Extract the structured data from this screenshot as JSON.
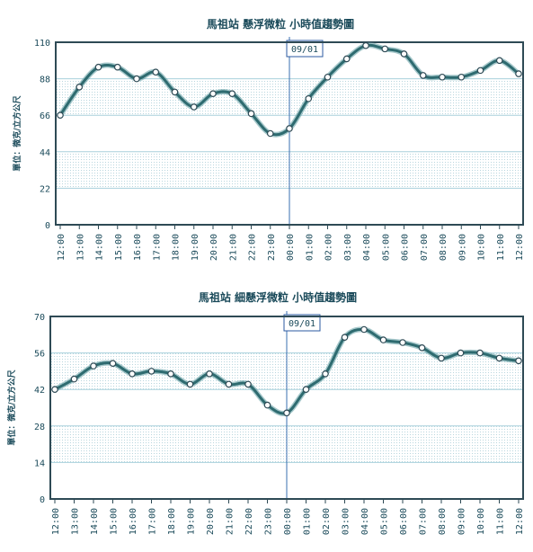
{
  "colors": {
    "frame": "#2e4a55",
    "grid": "#a8d0dc",
    "band": "#e8f1f4",
    "line": "#2e6b70",
    "line_halo": "#6aa3a8",
    "point_fill": "#ffffff",
    "point_stroke": "#2e4a55",
    "text": "#1a4a5a",
    "marker_line": "#3a6fb0",
    "marker_box": "#2b5aa0"
  },
  "chart_data": [
    {
      "type": "line",
      "title": "馬祖站 懸浮微粒 小時值趨勢圖",
      "ylabel": "單位：微克/立方公尺",
      "xlabel": "",
      "ylim": [
        0,
        110
      ],
      "yticks": [
        0,
        22,
        44,
        66,
        88,
        110
      ],
      "categories": [
        "12:00",
        "13:00",
        "14:00",
        "15:00",
        "16:00",
        "17:00",
        "18:00",
        "19:00",
        "20:00",
        "21:00",
        "22:00",
        "23:00",
        "00:00",
        "01:00",
        "02:00",
        "03:00",
        "04:00",
        "05:00",
        "06:00",
        "07:00",
        "08:00",
        "09:00",
        "10:00",
        "11:00",
        "12:00"
      ],
      "series": [
        {
          "values": [
            66,
            83,
            95,
            95,
            88,
            92,
            80,
            71,
            79,
            79,
            67,
            55,
            58,
            76,
            89,
            100,
            108,
            106,
            103,
            90,
            89,
            89,
            93,
            99,
            91
          ]
        }
      ],
      "grid": true,
      "marker": {
        "label": "09/01",
        "category": "00:00"
      }
    },
    {
      "type": "line",
      "title": "馬祖站 細懸浮微粒 小時值趨勢圖",
      "ylabel": "單位：微克/立方公尺",
      "xlabel": "",
      "ylim": [
        0,
        70
      ],
      "yticks": [
        0,
        14,
        28,
        42,
        56,
        70
      ],
      "categories": [
        "12:00",
        "13:00",
        "14:00",
        "15:00",
        "16:00",
        "17:00",
        "18:00",
        "19:00",
        "20:00",
        "21:00",
        "22:00",
        "23:00",
        "00:00",
        "01:00",
        "02:00",
        "03:00",
        "04:00",
        "05:00",
        "06:00",
        "07:00",
        "08:00",
        "09:00",
        "10:00",
        "11:00",
        "12:00"
      ],
      "series": [
        {
          "values": [
            42,
            46,
            51,
            52,
            48,
            49,
            48,
            44,
            48,
            44,
            44,
            36,
            33,
            42,
            48,
            62,
            65,
            61,
            60,
            58,
            54,
            56,
            56,
            54,
            53
          ]
        }
      ],
      "grid": true,
      "marker": {
        "label": "09/01",
        "category": "00:00"
      }
    }
  ]
}
